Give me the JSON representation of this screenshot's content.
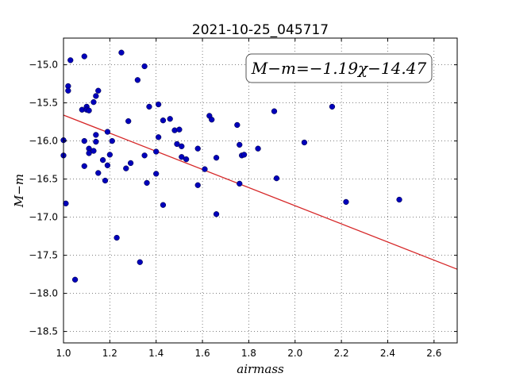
{
  "chart_data": {
    "type": "scatter",
    "title": "2021-10-25_045717",
    "xlabel": "airmass",
    "ylabel": "M−m",
    "xlim": [
      1.0,
      2.7
    ],
    "ylim": [
      -18.65,
      -14.65
    ],
    "y_inverted": true,
    "grid": true,
    "x_ticks": [
      1.0,
      1.2,
      1.4,
      1.6,
      1.8,
      2.0,
      2.2,
      2.4,
      2.6
    ],
    "x_tick_labels": [
      "1.0",
      "1.2",
      "1.4",
      "1.6",
      "1.8",
      "2.0",
      "2.2",
      "2.4",
      "2.6"
    ],
    "y_ticks": [
      -15.0,
      -15.5,
      -16.0,
      -16.5,
      -17.0,
      -17.5,
      -18.0,
      -18.5
    ],
    "y_tick_labels": [
      "−15.0",
      "−15.5",
      "−16.0",
      "−16.5",
      "−17.0",
      "−17.5",
      "−18.0",
      "−18.5"
    ],
    "annotation": "M−m=−1.19χ−14.47",
    "annotation_position": "top-right",
    "fit": {
      "slope": -1.19,
      "intercept": -14.47,
      "color": "#d62728"
    },
    "point_color": "#0000bb",
    "points": [
      [
        1.0,
        -15.99
      ],
      [
        1.0,
        -16.19
      ],
      [
        1.01,
        -16.82
      ],
      [
        1.02,
        -15.28
      ],
      [
        1.02,
        -15.34
      ],
      [
        1.03,
        -14.94
      ],
      [
        1.05,
        -17.82
      ],
      [
        1.08,
        -15.59
      ],
      [
        1.09,
        -14.89
      ],
      [
        1.09,
        -16.0
      ],
      [
        1.09,
        -16.33
      ],
      [
        1.1,
        -15.55
      ],
      [
        1.1,
        -15.59
      ],
      [
        1.11,
        -15.6
      ],
      [
        1.11,
        -16.1
      ],
      [
        1.11,
        -16.16
      ],
      [
        1.13,
        -15.49
      ],
      [
        1.13,
        -16.13
      ],
      [
        1.14,
        -15.41
      ],
      [
        1.14,
        -15.92
      ],
      [
        1.14,
        -16.01
      ],
      [
        1.15,
        -15.34
      ],
      [
        1.15,
        -16.42
      ],
      [
        1.17,
        -16.25
      ],
      [
        1.18,
        -16.52
      ],
      [
        1.19,
        -15.88
      ],
      [
        1.19,
        -16.32
      ],
      [
        1.2,
        -16.18
      ],
      [
        1.21,
        -16.0
      ],
      [
        1.23,
        -17.27
      ],
      [
        1.25,
        -14.84
      ],
      [
        1.27,
        -16.36
      ],
      [
        1.28,
        -15.74
      ],
      [
        1.29,
        -16.29
      ],
      [
        1.32,
        -15.2
      ],
      [
        1.33,
        -17.59
      ],
      [
        1.35,
        -16.19
      ],
      [
        1.35,
        -15.02
      ],
      [
        1.36,
        -16.55
      ],
      [
        1.37,
        -15.55
      ],
      [
        1.4,
        -16.43
      ],
      [
        1.4,
        -16.14
      ],
      [
        1.41,
        -15.52
      ],
      [
        1.41,
        -15.95
      ],
      [
        1.43,
        -16.84
      ],
      [
        1.43,
        -15.73
      ],
      [
        1.46,
        -15.71
      ],
      [
        1.48,
        -15.86
      ],
      [
        1.49,
        -16.04
      ],
      [
        1.5,
        -15.85
      ],
      [
        1.51,
        -16.07
      ],
      [
        1.51,
        -16.21
      ],
      [
        1.53,
        -16.24
      ],
      [
        1.58,
        -16.58
      ],
      [
        1.58,
        -16.1
      ],
      [
        1.61,
        -16.37
      ],
      [
        1.63,
        -15.67
      ],
      [
        1.64,
        -15.72
      ],
      [
        1.66,
        -16.22
      ],
      [
        1.66,
        -16.96
      ],
      [
        1.75,
        -15.79
      ],
      [
        1.76,
        -16.56
      ],
      [
        1.76,
        -16.05
      ],
      [
        1.77,
        -16.19
      ],
      [
        1.78,
        -16.18
      ],
      [
        1.84,
        -16.1
      ],
      [
        1.91,
        -15.61
      ],
      [
        1.92,
        -16.49
      ],
      [
        2.04,
        -16.02
      ],
      [
        2.16,
        -15.55
      ],
      [
        2.22,
        -16.8
      ],
      [
        2.45,
        -16.77
      ]
    ]
  }
}
